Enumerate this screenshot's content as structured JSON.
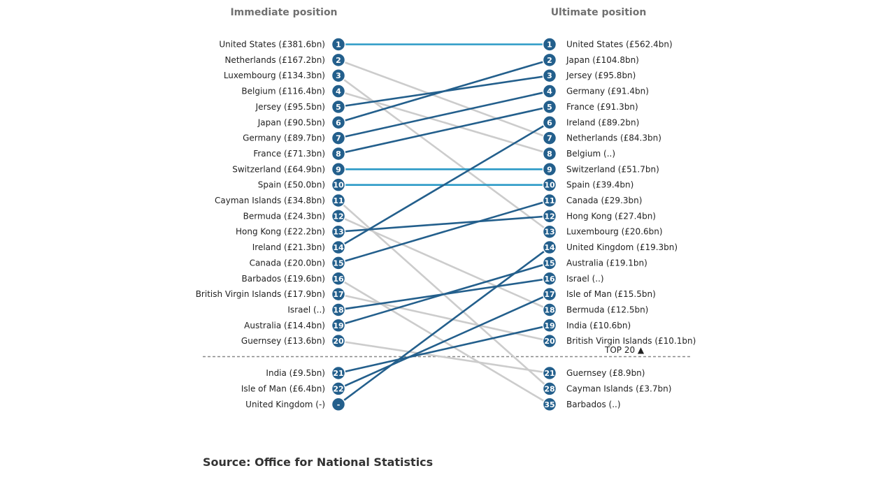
{
  "chart_data": {
    "type": "slope",
    "left_title": "Immediate position",
    "right_title": "Ultimate position",
    "divider_label": "TOP 20 ▲",
    "colors": {
      "unchanged": "#2b9ac6",
      "rose": "#235f8c",
      "fell": "#cccccc",
      "circle": "#235f8c",
      "divider": "#888888"
    },
    "left": [
      {
        "rank": "1",
        "label": "United States (£381.6bn)"
      },
      {
        "rank": "2",
        "label": "Netherlands (£167.2bn)"
      },
      {
        "rank": "3",
        "label": "Luxembourg (£134.3bn)"
      },
      {
        "rank": "4",
        "label": "Belgium (£116.4bn)"
      },
      {
        "rank": "5",
        "label": "Jersey (£95.5bn)"
      },
      {
        "rank": "6",
        "label": "Japan (£90.5bn)"
      },
      {
        "rank": "7",
        "label": "Germany (£89.7bn)"
      },
      {
        "rank": "8",
        "label": "France (£71.3bn)"
      },
      {
        "rank": "9",
        "label": "Switzerland (£64.9bn)"
      },
      {
        "rank": "10",
        "label": "Spain (£50.0bn)"
      },
      {
        "rank": "11",
        "label": "Cayman Islands (£34.8bn)"
      },
      {
        "rank": "12",
        "label": "Bermuda (£24.3bn)"
      },
      {
        "rank": "13",
        "label": "Hong Kong (£22.2bn)"
      },
      {
        "rank": "14",
        "label": "Ireland (£21.3bn)"
      },
      {
        "rank": "15",
        "label": "Canada (£20.0bn)"
      },
      {
        "rank": "16",
        "label": "Barbados (£19.6bn)"
      },
      {
        "rank": "17",
        "label": "British Virgin Islands (£17.9bn)"
      },
      {
        "rank": "18",
        "label": "Israel (..)"
      },
      {
        "rank": "19",
        "label": "Australia (£14.4bn)"
      },
      {
        "rank": "20",
        "label": "Guernsey (£13.6bn)"
      },
      {
        "rank": "21",
        "label": "India (£9.5bn)"
      },
      {
        "rank": "22",
        "label": "Isle of Man (£6.4bn)"
      },
      {
        "rank": "-",
        "label": "United Kingdom (-)"
      }
    ],
    "right": [
      {
        "rank": "1",
        "label": "United States (£562.4bn)"
      },
      {
        "rank": "2",
        "label": "Japan (£104.8bn)"
      },
      {
        "rank": "3",
        "label": "Jersey (£95.8bn)"
      },
      {
        "rank": "4",
        "label": "Germany (£91.4bn)"
      },
      {
        "rank": "5",
        "label": "France (£91.3bn)"
      },
      {
        "rank": "6",
        "label": "Ireland (£89.2bn)"
      },
      {
        "rank": "7",
        "label": "Netherlands (£84.3bn)"
      },
      {
        "rank": "8",
        "label": "Belgium (..)"
      },
      {
        "rank": "9",
        "label": "Switzerland (£51.7bn)"
      },
      {
        "rank": "10",
        "label": "Spain (£39.4bn)"
      },
      {
        "rank": "11",
        "label": "Canada (£29.3bn)"
      },
      {
        "rank": "12",
        "label": "Hong Kong (£27.4bn)"
      },
      {
        "rank": "13",
        "label": "Luxembourg (£20.6bn)"
      },
      {
        "rank": "14",
        "label": "United Kingdom (£19.3bn)"
      },
      {
        "rank": "15",
        "label": "Australia (£19.1bn)"
      },
      {
        "rank": "16",
        "label": "Israel (..)"
      },
      {
        "rank": "17",
        "label": "Isle of Man (£15.5bn)"
      },
      {
        "rank": "18",
        "label": "Bermuda (£12.5bn)"
      },
      {
        "rank": "19",
        "label": "India (£10.6bn)"
      },
      {
        "rank": "20",
        "label": "British Virgin Islands (£10.1bn)"
      },
      {
        "rank": "21",
        "label": "Guernsey (£8.9bn)"
      },
      {
        "rank": "28",
        "label": "Cayman Islands (£3.7bn)"
      },
      {
        "rank": "35",
        "label": "Barbados (..)"
      }
    ],
    "links": [
      {
        "from": 0,
        "to": 0,
        "status": "unchanged"
      },
      {
        "from": 1,
        "to": 6,
        "status": "fell"
      },
      {
        "from": 2,
        "to": 12,
        "status": "fell"
      },
      {
        "from": 3,
        "to": 7,
        "status": "fell"
      },
      {
        "from": 4,
        "to": 2,
        "status": "rose"
      },
      {
        "from": 5,
        "to": 1,
        "status": "rose"
      },
      {
        "from": 6,
        "to": 3,
        "status": "rose"
      },
      {
        "from": 7,
        "to": 4,
        "status": "rose"
      },
      {
        "from": 8,
        "to": 8,
        "status": "unchanged"
      },
      {
        "from": 9,
        "to": 9,
        "status": "unchanged"
      },
      {
        "from": 10,
        "to": 21,
        "status": "fell"
      },
      {
        "from": 11,
        "to": 17,
        "status": "fell"
      },
      {
        "from": 12,
        "to": 11,
        "status": "rose"
      },
      {
        "from": 13,
        "to": 5,
        "status": "rose"
      },
      {
        "from": 14,
        "to": 10,
        "status": "rose"
      },
      {
        "from": 15,
        "to": 22,
        "status": "fell"
      },
      {
        "from": 16,
        "to": 19,
        "status": "fell"
      },
      {
        "from": 17,
        "to": 15,
        "status": "rose"
      },
      {
        "from": 18,
        "to": 14,
        "status": "rose"
      },
      {
        "from": 19,
        "to": 20,
        "status": "fell"
      },
      {
        "from": 20,
        "to": 18,
        "status": "rose"
      },
      {
        "from": 21,
        "to": 16,
        "status": "rose"
      },
      {
        "from": 22,
        "to": 13,
        "status": "rose"
      }
    ]
  },
  "source": "Source: Office for National Statistics"
}
